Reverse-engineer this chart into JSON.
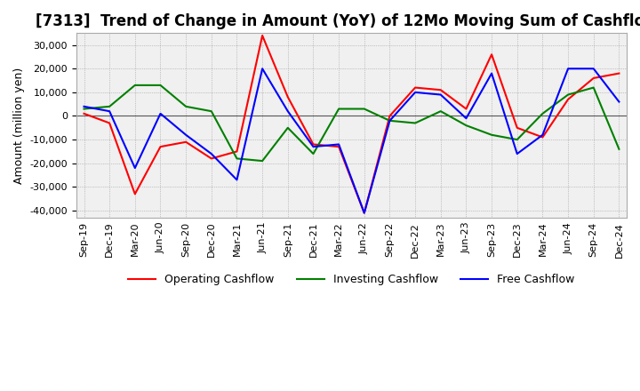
{
  "title": "[7313]  Trend of Change in Amount (YoY) of 12Mo Moving Sum of Cashflows",
  "ylabel": "Amount (million yen)",
  "ylim": [
    -43000,
    35000
  ],
  "yticks": [
    -40000,
    -30000,
    -20000,
    -10000,
    0,
    10000,
    20000,
    30000
  ],
  "x_labels": [
    "Sep-19",
    "Dec-19",
    "Mar-20",
    "Jun-20",
    "Sep-20",
    "Dec-20",
    "Mar-21",
    "Jun-21",
    "Sep-21",
    "Dec-21",
    "Mar-22",
    "Jun-22",
    "Sep-22",
    "Dec-22",
    "Mar-23",
    "Jun-23",
    "Sep-23",
    "Dec-23",
    "Mar-24",
    "Jun-24",
    "Sep-24",
    "Dec-24"
  ],
  "operating": [
    1000,
    -3000,
    -33000,
    -13000,
    -11000,
    -18000,
    -15000,
    34000,
    8000,
    -12000,
    -13000,
    -41000,
    0,
    12000,
    11000,
    3000,
    26000,
    -5000,
    -9000,
    7000,
    16000,
    18000
  ],
  "investing": [
    3000,
    4000,
    13000,
    13000,
    4000,
    2000,
    -18000,
    -19000,
    -5000,
    -16000,
    3000,
    3000,
    -2000,
    -3000,
    2000,
    -4000,
    -8000,
    -10000,
    1000,
    9000,
    12000,
    -14000
  ],
  "free": [
    4000,
    2000,
    -22000,
    1000,
    -8000,
    -16000,
    -27000,
    20000,
    2000,
    -13000,
    -12000,
    -41000,
    -2000,
    10000,
    9000,
    -1000,
    18000,
    -16000,
    -8000,
    20000,
    20000,
    6000
  ],
  "op_color": "#ff0000",
  "inv_color": "#008000",
  "free_color": "#0000ff",
  "bg_color": "#ffffff",
  "plot_bg": "#f0f0f0",
  "grid_color": "#999999",
  "title_fontsize": 12,
  "label_fontsize": 9,
  "tick_fontsize": 8
}
